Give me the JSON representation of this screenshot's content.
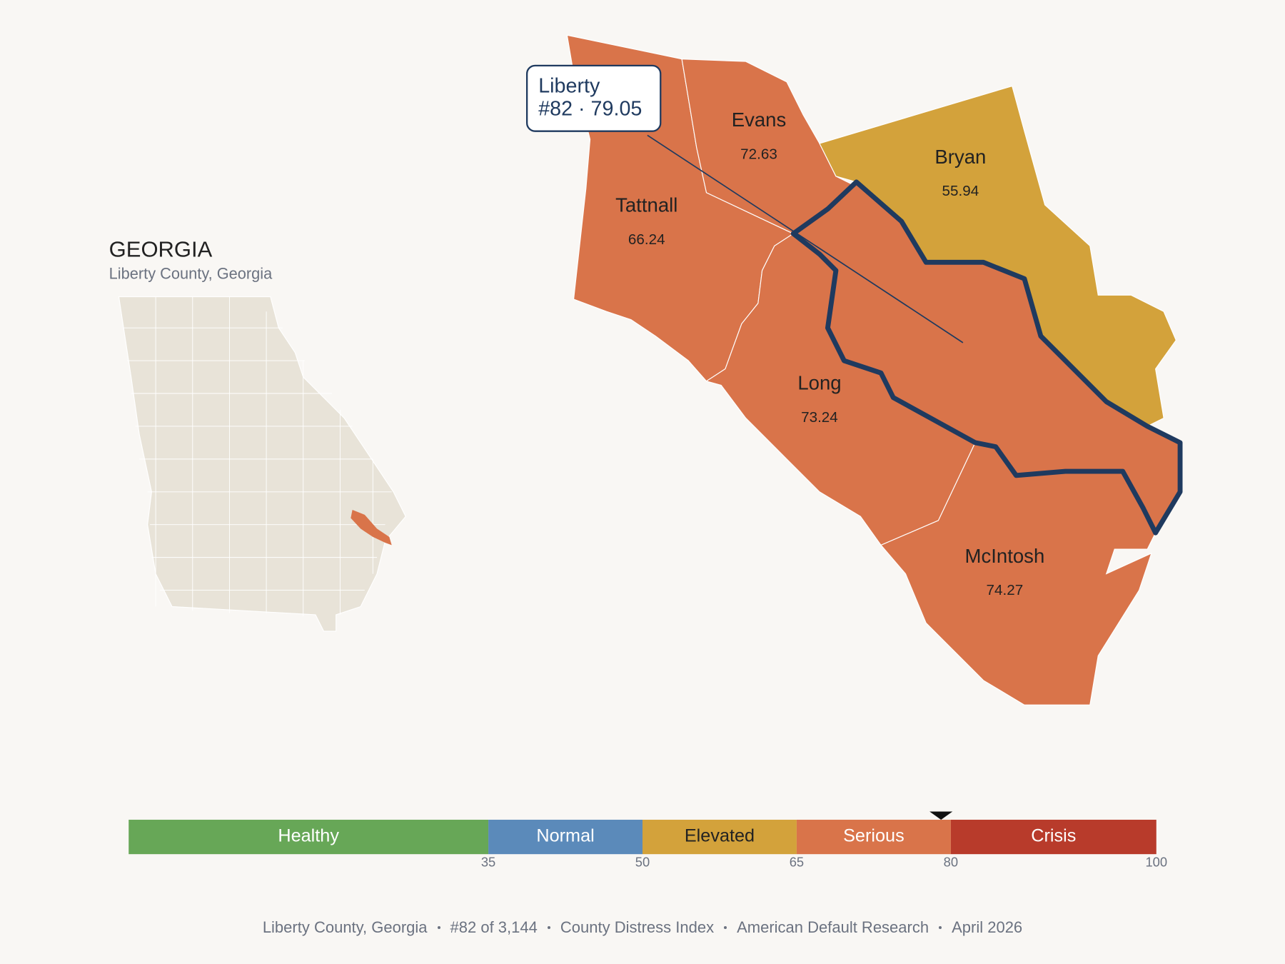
{
  "map": {
    "state": "GEORGIA",
    "subtitle": "Liberty County, Georgia",
    "highlight": {
      "name": "Liberty",
      "label": "#82 · 79.05",
      "score": 79.05
    },
    "counties": [
      {
        "name": "Tattnall",
        "value": 66.24
      },
      {
        "name": "Evans",
        "value": 72.63
      },
      {
        "name": "Bryan",
        "value": 55.94
      },
      {
        "name": "Long",
        "value": 73.24
      },
      {
        "name": "McIntosh",
        "value": 74.27
      }
    ]
  },
  "scale": {
    "range": [
      0,
      100
    ],
    "segments": [
      {
        "name": "Healthy",
        "color": "#67a757",
        "label_color": "#ffffff"
      },
      {
        "name": "Normal",
        "color": "#5b8aba",
        "label_color": "#ffffff"
      },
      {
        "name": "Elevated",
        "color": "#d3a23b",
        "label_color": "#222222"
      },
      {
        "name": "Serious",
        "color": "#d9744a",
        "label_color": "#ffffff"
      },
      {
        "name": "Crisis",
        "color": "#b83b2b",
        "label_color": "#ffffff"
      }
    ],
    "thresholds": [
      35,
      50,
      65,
      80,
      100
    ]
  },
  "footer": [
    "Liberty County, Georgia",
    "#82 of 3,144",
    "County Distress Index",
    "American Default Research",
    "April 2026"
  ]
}
